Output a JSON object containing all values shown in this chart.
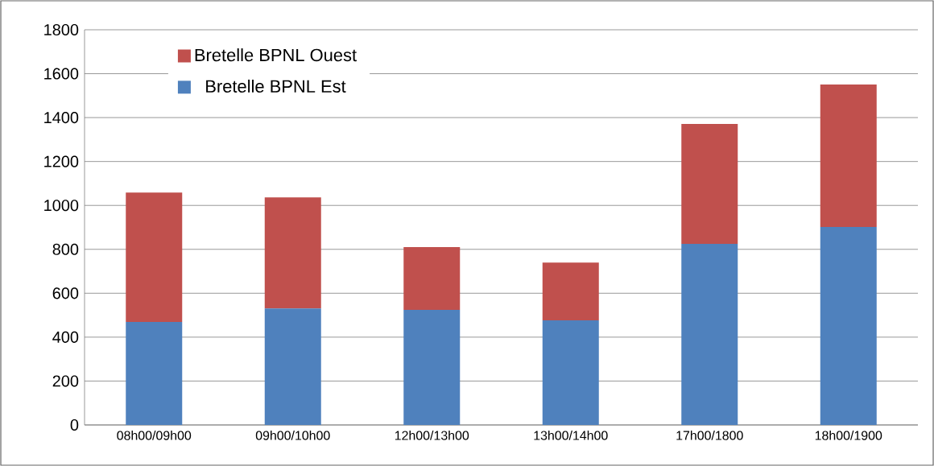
{
  "chart_data": {
    "type": "bar",
    "stacked": true,
    "categories": [
      "08h00/09h00",
      "09h00/10h00",
      "12h00/13h00",
      "13h00/14h00",
      "17h00/1800",
      "18h00/1900"
    ],
    "series": [
      {
        "name": "Bretelle BPNL Est",
        "color": "#4f81bd",
        "values": [
          469,
          531,
          524,
          477,
          825,
          902
        ]
      },
      {
        "name": "Bretelle BPNL Ouest",
        "color": "#c0504d",
        "values": [
          590,
          506,
          286,
          263,
          546,
          649
        ]
      }
    ],
    "ylim": [
      0,
      1800
    ],
    "yticks": [
      0,
      200,
      400,
      600,
      800,
      1000,
      1200,
      1400,
      1600,
      1800
    ],
    "grid": "y",
    "legend": "top left"
  }
}
